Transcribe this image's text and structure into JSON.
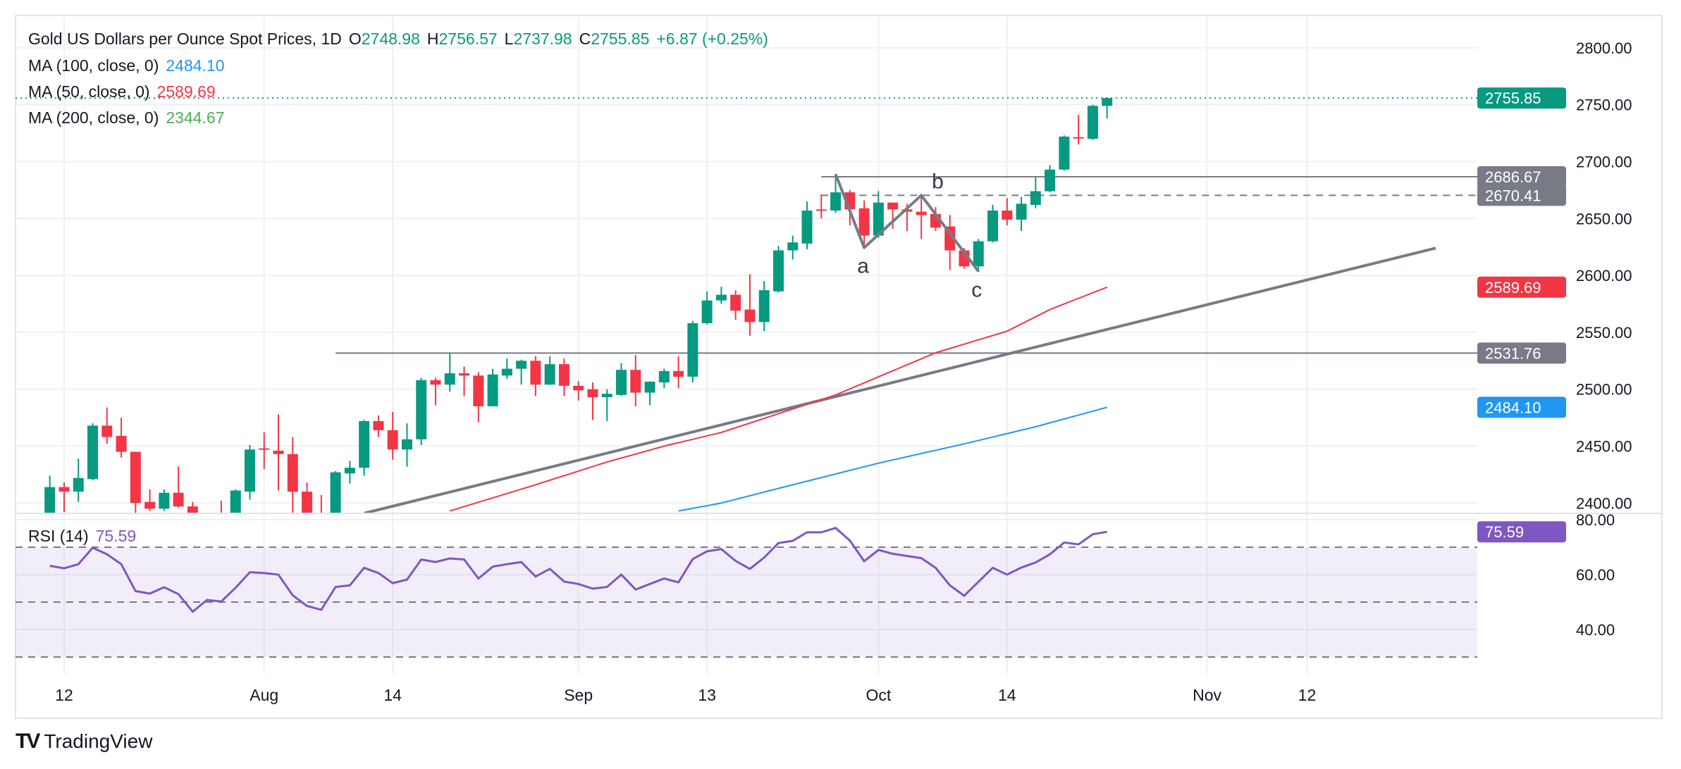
{
  "header": {
    "title": "Gold US Dollars per Ounce Spot Prices, 1D",
    "o_label": "O",
    "o_value": "2748.98",
    "h_label": "H",
    "h_value": "2756.57",
    "l_label": "L",
    "l_value": "2737.98",
    "c_label": "C",
    "c_value": "2755.85",
    "change": "+6.87 (+0.25%)"
  },
  "indicators": [
    {
      "label": "MA (100, close, 0)",
      "value": "2484.10",
      "color": "#2196F3"
    },
    {
      "label": "MA (50, close, 0)",
      "value": "2589.69",
      "color": "#F23645"
    },
    {
      "label": "MA (200, close, 0)",
      "value": "2344.67",
      "color": "#4CAF50"
    }
  ],
  "rsi_legend": {
    "label": "RSI (14)",
    "value": "75.59"
  },
  "branding": {
    "name": "TradingView"
  },
  "colors": {
    "up": "#089981",
    "down": "#F23645",
    "ma100": "#2196F3",
    "ma50": "#F23645",
    "rsi": "#7E57C2",
    "drawing": "#787B86",
    "grid": "#F0F0F3"
  },
  "chart_data": [
    {
      "type": "candlestick",
      "ylim": [
        2390,
        2830
      ],
      "y_ticks": [
        "2400.00",
        "2450.00",
        "2500.00",
        "2550.00",
        "2600.00",
        "2650.00",
        "2700.00",
        "2750.00",
        "2800.00"
      ],
      "x_ticks": [
        {
          "label": "12",
          "date": "2024-07-12"
        },
        {
          "label": "Aug",
          "date": "2024-08-01"
        },
        {
          "label": "14",
          "date": "2024-08-14"
        },
        {
          "label": "Sep",
          "date": "2024-09-02"
        },
        {
          "label": "13",
          "date": "2024-09-13"
        },
        {
          "label": "Oct",
          "date": "2024-10-01"
        },
        {
          "label": "14",
          "date": "2024-10-14"
        },
        {
          "label": "Nov",
          "date": "2024-11-01"
        },
        {
          "label": "12",
          "date": "2024-11-12"
        }
      ],
      "grid": true,
      "candles": [
        [
          "2024-07-11",
          2390,
          2424,
          2385,
          2414
        ],
        [
          "2024-07-12",
          2414,
          2418,
          2392,
          2410
        ],
        [
          "2024-07-15",
          2410,
          2439,
          2401,
          2422
        ],
        [
          "2024-07-16",
          2421,
          2470,
          2420,
          2468
        ],
        [
          "2024-07-17",
          2468,
          2484,
          2452,
          2458
        ],
        [
          "2024-07-18",
          2459,
          2475,
          2440,
          2445
        ],
        [
          "2024-07-19",
          2445,
          2445,
          2390,
          2400
        ],
        [
          "2024-07-22",
          2401,
          2412,
          2393,
          2395
        ],
        [
          "2024-07-23",
          2395,
          2412,
          2393,
          2409
        ],
        [
          "2024-07-24",
          2409,
          2432,
          2396,
          2397
        ],
        [
          "2024-07-25",
          2397,
          2401,
          2365,
          2385
        ],
        [
          "2024-07-26",
          2385,
          2390,
          2370,
          2387
        ],
        [
          "2024-07-29",
          2388,
          2402,
          2380,
          2384
        ],
        [
          "2024-07-30",
          2384,
          2412,
          2380,
          2411
        ],
        [
          "2024-07-31",
          2410,
          2451,
          2403,
          2447
        ],
        [
          "2024-08-01",
          2448,
          2462,
          2430,
          2447
        ],
        [
          "2024-08-02",
          2446,
          2478,
          2411,
          2443
        ],
        [
          "2024-08-05",
          2443,
          2458,
          2364,
          2410
        ],
        [
          "2024-08-06",
          2410,
          2418,
          2380,
          2390
        ],
        [
          "2024-08-07",
          2390,
          2407,
          2378,
          2383
        ],
        [
          "2024-08-08",
          2382,
          2428,
          2378,
          2427
        ],
        [
          "2024-08-09",
          2426,
          2437,
          2417,
          2431
        ],
        [
          "2024-08-12",
          2431,
          2473,
          2424,
          2472
        ],
        [
          "2024-08-13",
          2472,
          2477,
          2458,
          2464
        ],
        [
          "2024-08-14",
          2464,
          2480,
          2438,
          2447
        ],
        [
          "2024-08-15",
          2447,
          2470,
          2432,
          2456
        ],
        [
          "2024-08-16",
          2456,
          2510,
          2451,
          2508
        ],
        [
          "2024-08-19",
          2508,
          2510,
          2486,
          2504
        ],
        [
          "2024-08-20",
          2504,
          2532,
          2498,
          2514
        ],
        [
          "2024-08-21",
          2514,
          2520,
          2494,
          2512
        ],
        [
          "2024-08-22",
          2512,
          2515,
          2471,
          2485
        ],
        [
          "2024-08-23",
          2485,
          2518,
          2485,
          2513
        ],
        [
          "2024-08-26",
          2512,
          2527,
          2509,
          2518
        ],
        [
          "2024-08-27",
          2518,
          2526,
          2504,
          2525
        ],
        [
          "2024-08-28",
          2525,
          2529,
          2494,
          2504
        ],
        [
          "2024-08-29",
          2504,
          2529,
          2504,
          2522
        ],
        [
          "2024-08-30",
          2522,
          2527,
          2494,
          2503
        ],
        [
          "2024-09-02",
          2503,
          2507,
          2490,
          2499
        ],
        [
          "2024-09-03",
          2500,
          2506,
          2473,
          2493
        ],
        [
          "2024-09-04",
          2493,
          2500,
          2472,
          2496
        ],
        [
          "2024-09-05",
          2495,
          2523,
          2494,
          2517
        ],
        [
          "2024-09-06",
          2517,
          2530,
          2485,
          2497
        ],
        [
          "2024-09-09",
          2497,
          2507,
          2486,
          2506.6
        ],
        [
          "2024-09-10",
          2506,
          2518,
          2501,
          2516
        ],
        [
          "2024-09-11",
          2516,
          2529,
          2501,
          2511
        ],
        [
          "2024-09-12",
          2511,
          2560,
          2506,
          2558
        ],
        [
          "2024-09-13",
          2558,
          2586,
          2557,
          2578
        ],
        [
          "2024-09-16",
          2578,
          2590,
          2575,
          2583
        ],
        [
          "2024-09-17",
          2583,
          2587,
          2561,
          2569
        ],
        [
          "2024-09-18",
          2570,
          2601,
          2547,
          2559
        ],
        [
          "2024-09-19",
          2559,
          2595,
          2551,
          2587
        ],
        [
          "2024-09-20",
          2586,
          2626,
          2585,
          2622
        ],
        [
          "2024-09-23",
          2622,
          2635,
          2614,
          2629
        ],
        [
          "2024-09-24",
          2628,
          2665,
          2623,
          2657
        ],
        [
          "2024-09-25",
          2658,
          2671,
          2650,
          2657
        ],
        [
          "2024-09-26",
          2657,
          2689,
          2655,
          2673
        ],
        [
          "2024-09-27",
          2673,
          2675,
          2644,
          2658
        ],
        [
          "2024-09-30",
          2659,
          2666,
          2624,
          2635
        ],
        [
          "2024-10-01",
          2635,
          2674,
          2633,
          2664
        ],
        [
          "2024-10-02",
          2664,
          2664,
          2641,
          2658
        ],
        [
          "2024-10-03",
          2658,
          2663,
          2639,
          2656
        ],
        [
          "2024-10-04",
          2656,
          2671,
          2632,
          2653
        ],
        [
          "2024-10-07",
          2654,
          2660,
          2639,
          2642
        ],
        [
          "2024-10-08",
          2643,
          2653,
          2605,
          2622
        ],
        [
          "2024-10-09",
          2622,
          2624,
          2606,
          2608
        ],
        [
          "2024-10-10",
          2608,
          2632,
          2603,
          2630
        ],
        [
          "2024-10-11",
          2630,
          2662,
          2629,
          2657
        ],
        [
          "2024-10-14",
          2657,
          2668,
          2644,
          2649
        ],
        [
          "2024-10-15",
          2649,
          2669,
          2639,
          2663
        ],
        [
          "2024-10-16",
          2662,
          2686,
          2659,
          2674
        ],
        [
          "2024-10-17",
          2674,
          2697,
          2673,
          2693
        ],
        [
          "2024-10-18",
          2693,
          2723,
          2692,
          2722
        ],
        [
          "2024-10-21",
          2721.5,
          2741,
          2715,
          2720.5
        ],
        [
          "2024-10-22",
          2720,
          2750,
          2719,
          2749
        ],
        [
          "2024-10-23",
          2748.98,
          2756.57,
          2737.98,
          2755.85
        ]
      ],
      "ma50": [
        [
          "2024-08-20",
          2393
        ],
        [
          "2024-08-28",
          2416
        ],
        [
          "2024-09-04",
          2436
        ],
        [
          "2024-09-10",
          2450
        ],
        [
          "2024-09-16",
          2462
        ],
        [
          "2024-09-26",
          2495
        ],
        [
          "2024-10-07",
          2532
        ],
        [
          "2024-10-14",
          2551
        ],
        [
          "2024-10-17",
          2570
        ],
        [
          "2024-10-23",
          2589.69
        ]
      ],
      "ma100": [
        [
          "2024-09-11",
          2393
        ],
        [
          "2024-09-16",
          2400
        ],
        [
          "2024-09-23",
          2416
        ],
        [
          "2024-10-01",
          2435
        ],
        [
          "2024-10-09",
          2452
        ],
        [
          "2024-10-16",
          2467
        ],
        [
          "2024-10-23",
          2484.1
        ]
      ],
      "last_price": {
        "value": 2755.85,
        "label": "2755.85"
      },
      "price_labels": [
        {
          "value": 2686.67,
          "label": "2686.67",
          "color": "#787B86"
        },
        {
          "value": 2670.41,
          "label": "2670.41",
          "color": "#787B86"
        },
        {
          "value": 2589.69,
          "label": "2589.69",
          "color": "#F23645"
        },
        {
          "value": 2531.76,
          "label": "2531.76",
          "color": "#787B86"
        },
        {
          "value": 2484.1,
          "label": "2484.10",
          "color": "#2196F3"
        }
      ],
      "horizontal_lines": [
        {
          "value": 2531.76,
          "from": "2024-08-08",
          "style": "solid"
        },
        {
          "value": 2686.67,
          "from": "2024-09-25",
          "style": "solid"
        },
        {
          "value": 2670.41,
          "from": "2024-09-25",
          "style": "dashed"
        }
      ],
      "trendline": {
        "start": [
          "2024-08-12",
          2391
        ],
        "end": [
          "2024-11-25",
          2624
        ]
      },
      "abc_pattern": [
        {
          "date": "2024-09-26",
          "price": 2689,
          "label": ""
        },
        {
          "date": "2024-09-30",
          "price": 2624.4,
          "label": "a"
        },
        {
          "date": "2024-10-04",
          "price": 2670.4,
          "label": "b"
        },
        {
          "date": "2024-10-10",
          "price": 2603.5,
          "label": "c"
        }
      ]
    },
    {
      "type": "line",
      "title": "RSI (14)",
      "ylim": [
        25,
        83
      ],
      "y_ticks": [
        "40.00",
        "60.00",
        "80.00"
      ],
      "levels": [
        70,
        50,
        30
      ],
      "last": {
        "value": 75.59,
        "label": "75.59"
      },
      "values": [
        63.2,
        62.3,
        63.8,
        69.8,
        67.4,
        63.8,
        54.0,
        53.1,
        55.4,
        52.9,
        46.5,
        50.8,
        50.2,
        55.2,
        60.9,
        60.6,
        60.0,
        52.5,
        48.6,
        47.2,
        55.5,
        56.1,
        62.5,
        60.6,
        56.9,
        58.2,
        65.5,
        64.6,
        65.9,
        65.5,
        58.6,
        62.9,
        63.8,
        64.6,
        59.3,
        62.1,
        57.5,
        56.6,
        54.9,
        55.5,
        60.0,
        54.6,
        56.6,
        58.6,
        57.2,
        65.7,
        68.5,
        69.3,
        65.0,
        62.1,
        66.2,
        71.5,
        72.3,
        75.4,
        75.4,
        77.0,
        72.4,
        64.9,
        69.0,
        67.6,
        66.8,
        66.0,
        62.5,
        56.1,
        52.3,
        57.4,
        62.5,
        60.0,
        62.6,
        64.4,
        67.4,
        71.7,
        71.0,
        74.7,
        75.59
      ]
    }
  ]
}
